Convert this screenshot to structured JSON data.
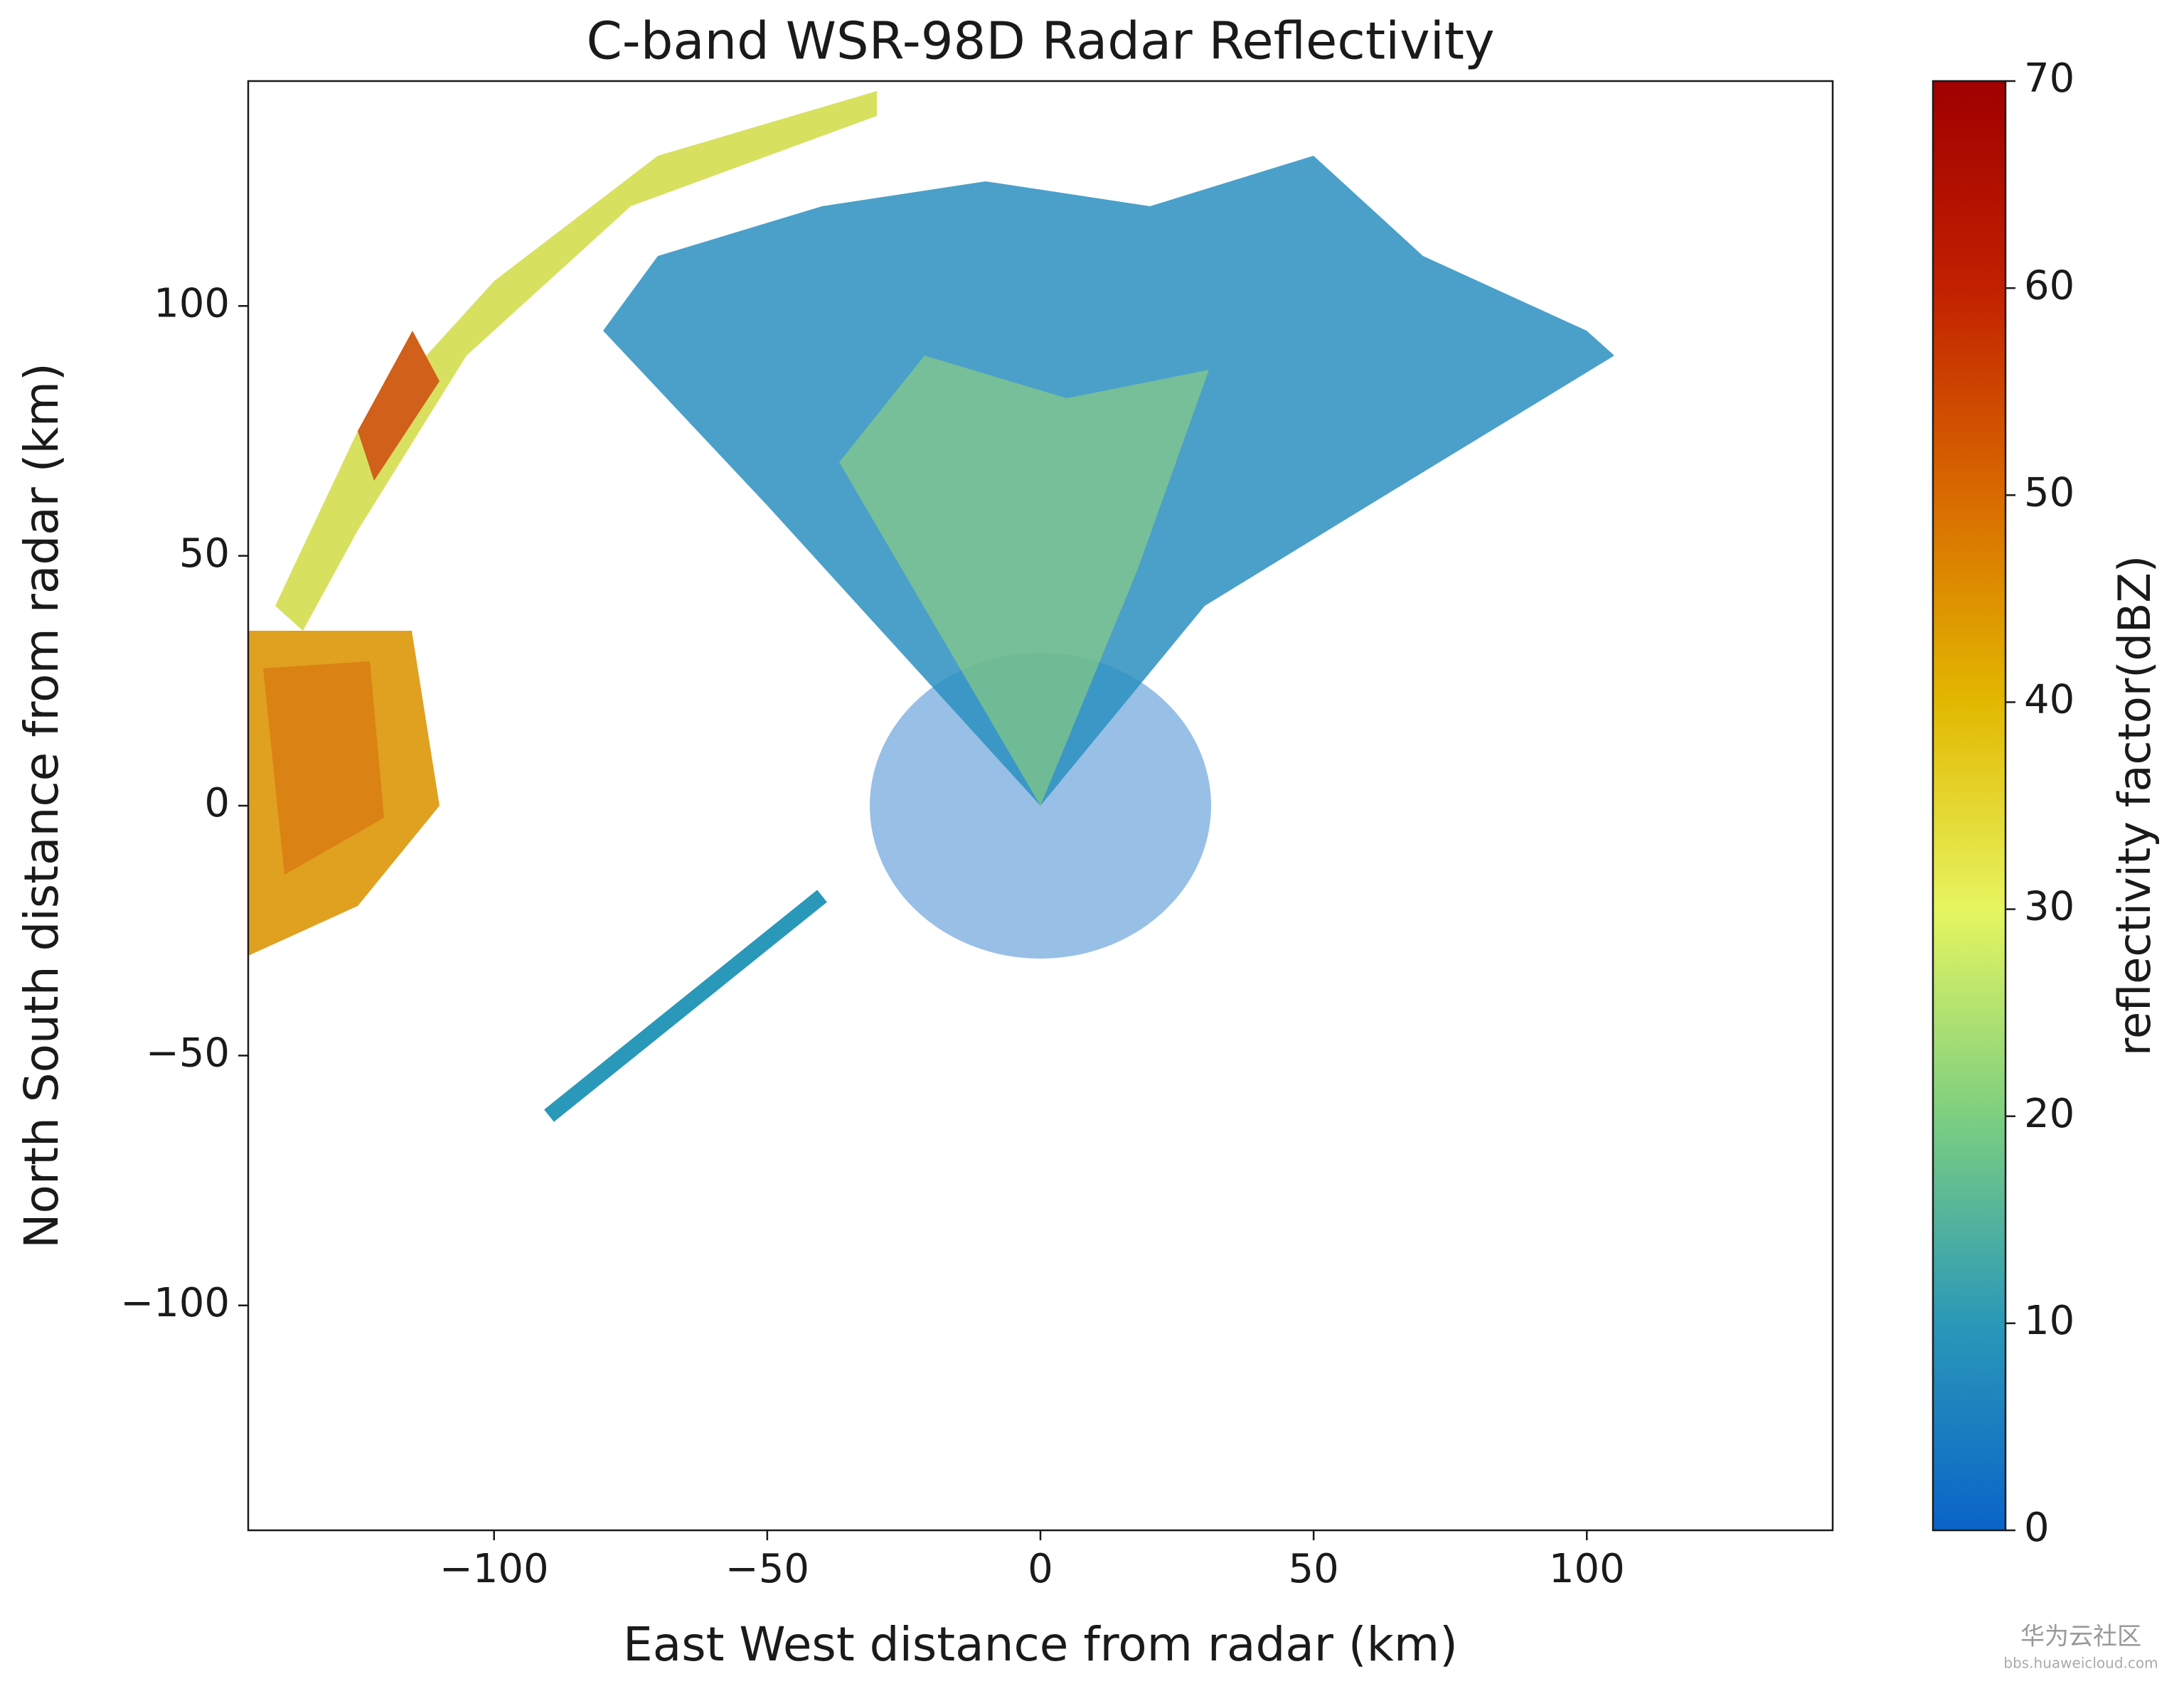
{
  "chart_data": {
    "type": "radar-image",
    "title": "C-band WSR-98D Radar Reflectivity",
    "xlabel": "East West distance from radar (km)",
    "ylabel": "North South distance from radar (km)",
    "xlim": [
      -145,
      145
    ],
    "ylim": [
      -145,
      145
    ],
    "xticks": [
      {
        "value": -100,
        "label": "−100"
      },
      {
        "value": -50,
        "label": "−50"
      },
      0,
      50,
      100
    ],
    "yticks": [
      {
        "value": -100,
        "label": "−100"
      },
      {
        "value": -50,
        "label": "−50"
      },
      0,
      50,
      100
    ],
    "colorbar": {
      "label": "reflectivity factor(dBZ)",
      "clim": [
        0,
        70
      ],
      "ticks": [
        0,
        10,
        20,
        30,
        40,
        50,
        60,
        70
      ],
      "colormap": [
        "#0a64c8",
        "#2a98b8",
        "#7ccf80",
        "#e6f560",
        "#e2b800",
        "#d86a00",
        "#c22000",
        "#a00000"
      ]
    }
  },
  "watermark": {
    "title": "华为云社区",
    "url": "bbs.huaweicloud.com"
  }
}
